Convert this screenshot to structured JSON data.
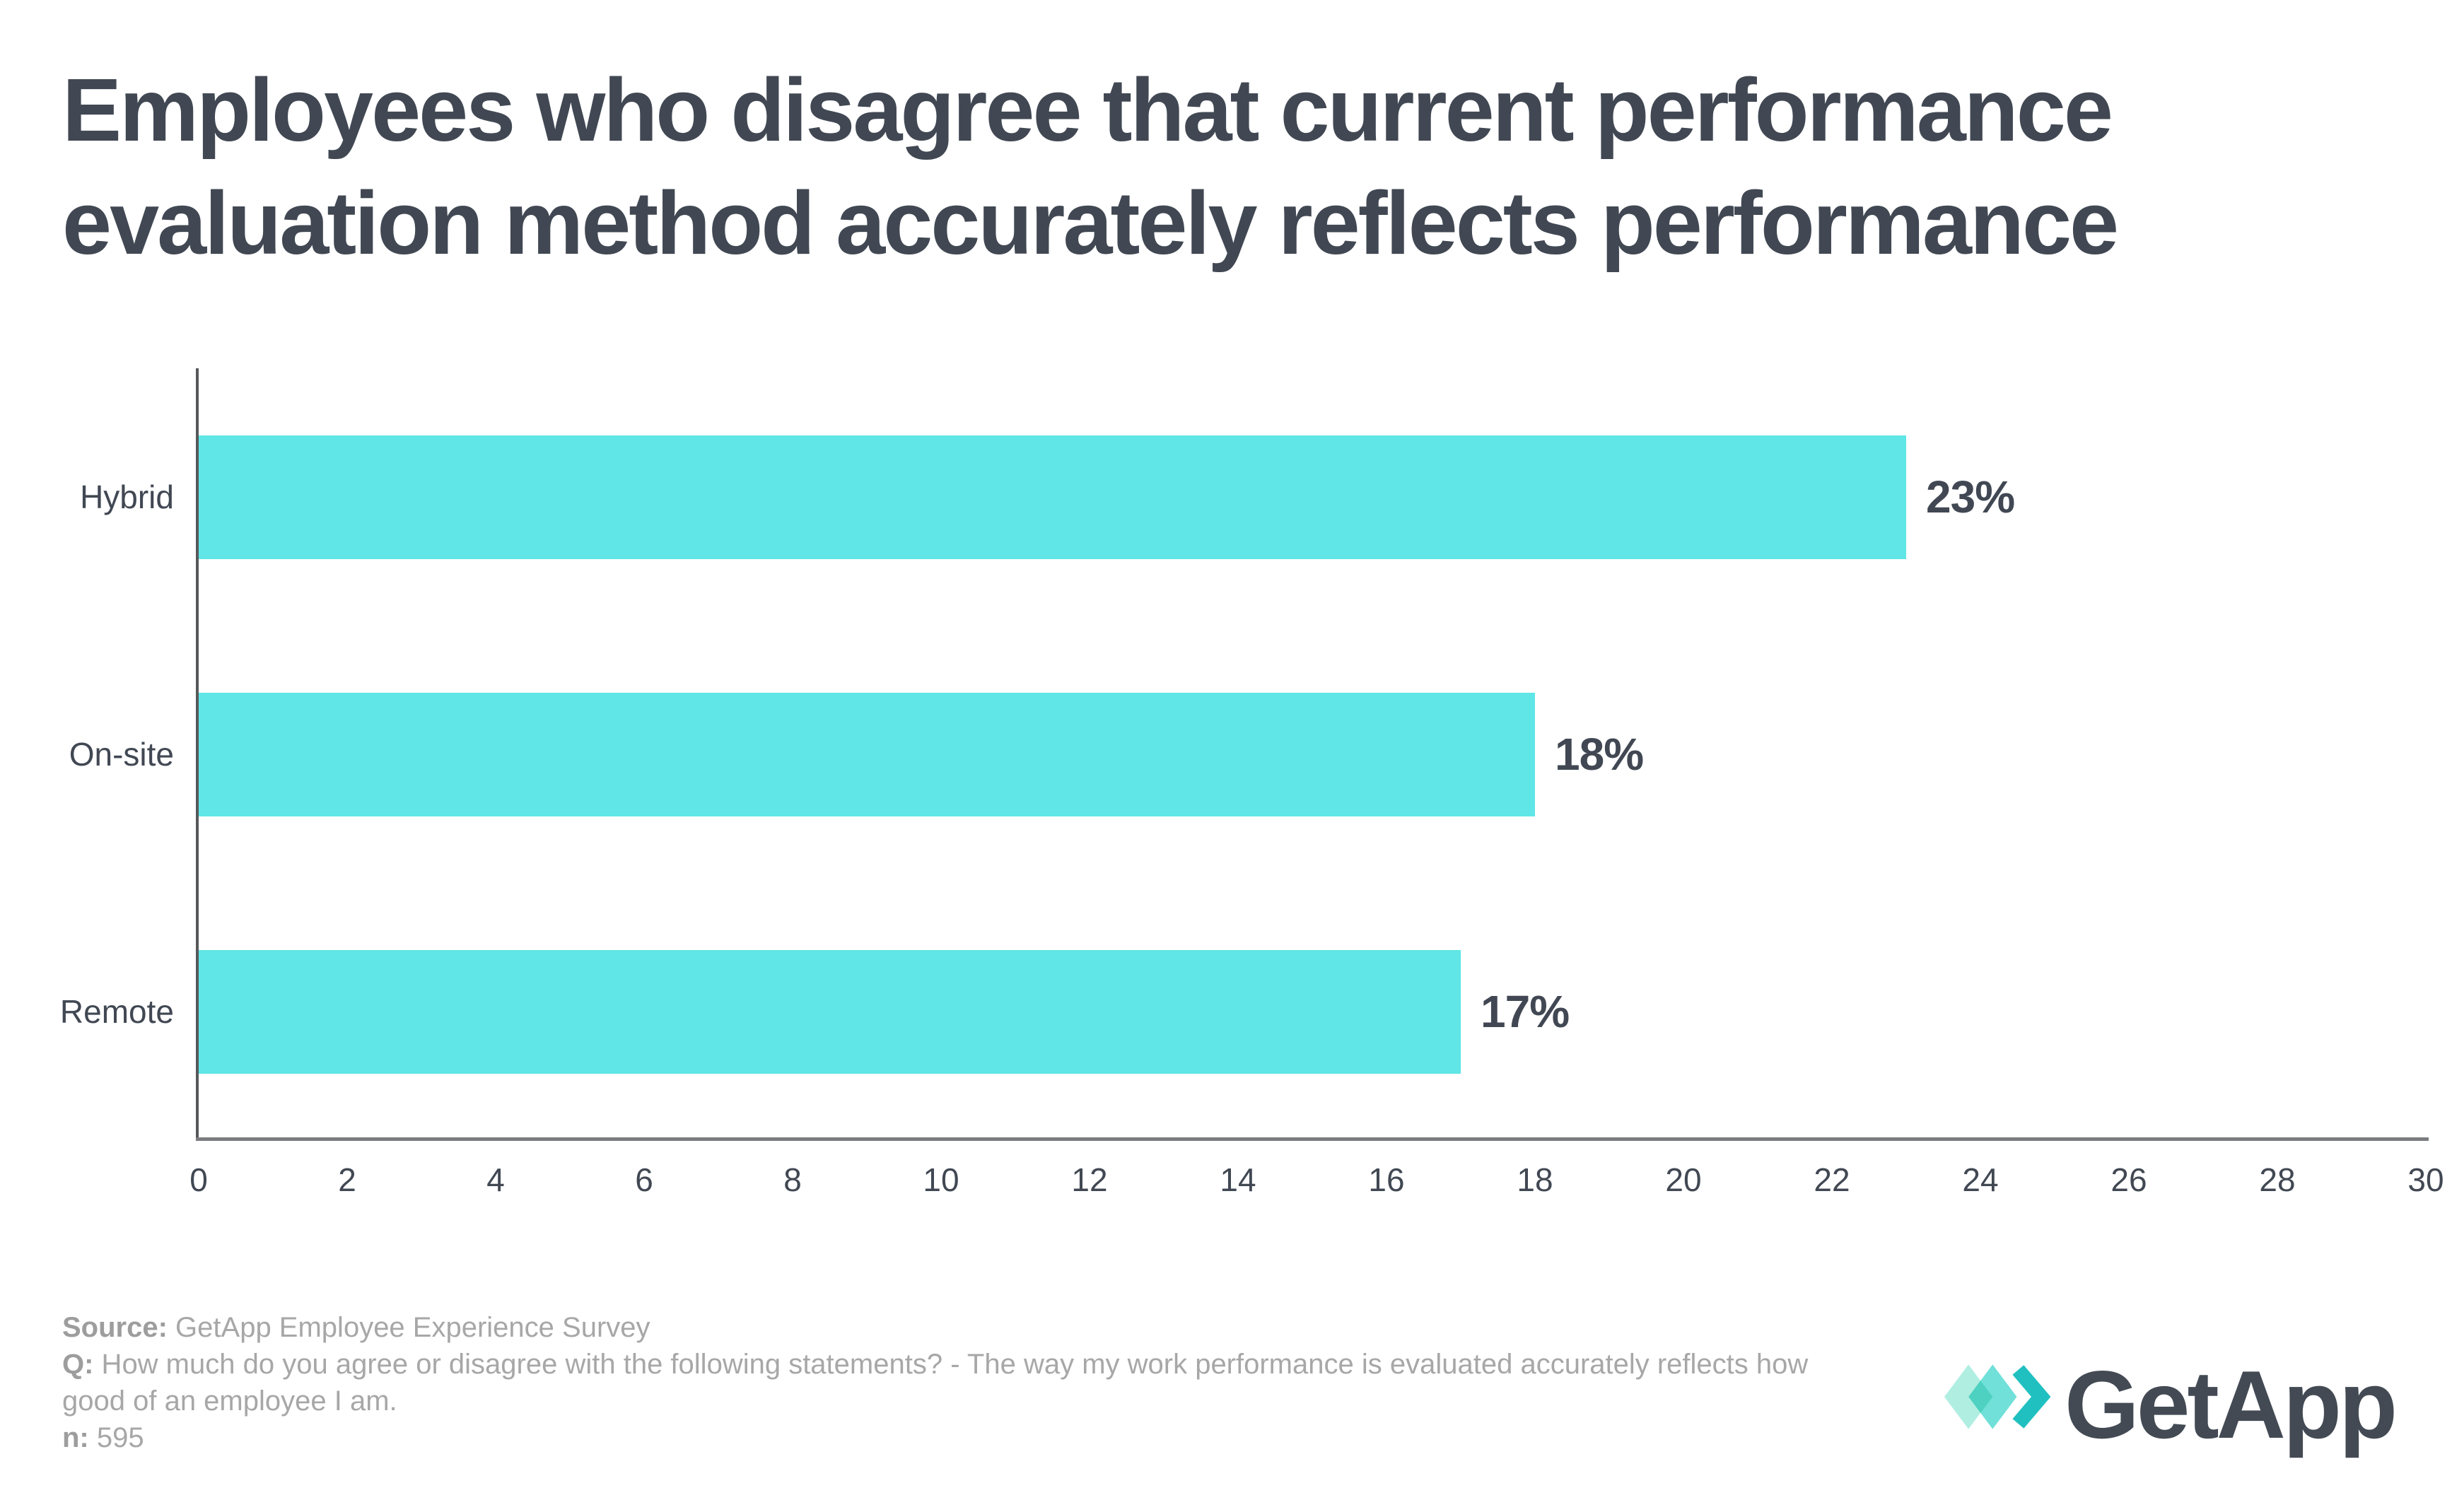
{
  "title": "Employees who disagree that current performance evaluation method accurately reflects performance",
  "chart_data": {
    "type": "bar",
    "orientation": "horizontal",
    "title": "Employees who disagree that current performance evaluation method accurately reflects performance",
    "categories": [
      "Hybrid",
      "On-site",
      "Remote"
    ],
    "values": [
      23,
      18,
      17
    ],
    "value_labels": [
      "23%",
      "18%",
      "17%"
    ],
    "xlabel": "",
    "ylabel": "",
    "xlim": [
      0,
      30
    ],
    "x_ticks": [
      0,
      2,
      4,
      6,
      8,
      10,
      12,
      14,
      16,
      18,
      20,
      22,
      24,
      26,
      28,
      30
    ],
    "grid": false,
    "legend": null,
    "bar_color": "#60e6e6",
    "axis_color": "#6b6d70",
    "label_color": "#414853"
  },
  "footer": {
    "source_label": "Source:",
    "source_text": " GetApp Employee Experience Survey",
    "q_label": "Q:",
    "q_text": " How much do you agree or disagree with the following statements?  - The way my work performance is evaluated accurately reflects how good of an employee I am.",
    "n_label": "n:",
    "n_text": " 595"
  },
  "logo": {
    "text": "GetApp",
    "icon": "getapp-diamonds-icon",
    "mark_colors": [
      "#a9ecdf",
      "#3fd6cd",
      "#20c0c0"
    ],
    "text_color": "#434a54"
  },
  "colors": {
    "background": "#ffffff",
    "title": "#414853",
    "bar": "#60e6e6",
    "footer_gray": "#a7a7a7"
  }
}
